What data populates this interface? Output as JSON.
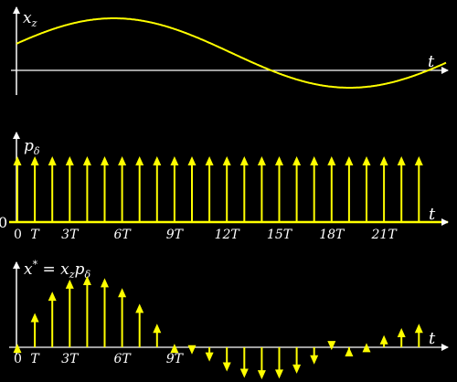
{
  "colors": {
    "background": "#000000",
    "axis": "#ffffff",
    "signal": "#ffff00"
  },
  "labels": {
    "top_y": "x",
    "top_y_sub": "z",
    "mid_y": "p",
    "mid_y_sub": "δ",
    "bot_y_a": "x",
    "bot_y_sup": "*",
    "bot_y_eq": " = ",
    "bot_y_b": "x",
    "bot_y_b_sub": "z",
    "bot_y_c": "p",
    "bot_y_c_sub": "δ",
    "t": "t",
    "zero": "0"
  },
  "mid_ticks": [
    "T",
    "3T",
    "6T",
    "9T",
    "12T",
    "15T",
    "18T",
    "21T"
  ],
  "bot_ticks": [
    "T",
    "3T",
    "6T",
    "9T"
  ],
  "chart_data": [
    {
      "type": "line",
      "title": "",
      "xlabel": "t",
      "ylabel": "x_z",
      "function": "continuous sinusoid, period ≈ 27T, phase such that x_z(0) ≈ 0.28·A, peak ≈ 4.5T, trough ≈ 18T",
      "samples_T_units": [
        0,
        2,
        4.5,
        8,
        11,
        14,
        18,
        22,
        26
      ],
      "samples_norm": [
        0.28,
        0.86,
        1.0,
        0.77,
        0.26,
        -0.28,
        -0.42,
        -0.18,
        0.3
      ]
    },
    {
      "type": "impulse",
      "title": "",
      "xlabel": "t",
      "ylabel": "p_δ",
      "impulse_positions_T": [
        0,
        1,
        2,
        3,
        4,
        5,
        6,
        7,
        8,
        9,
        10,
        11,
        12,
        13,
        14,
        15,
        16,
        17,
        18,
        19,
        20,
        21,
        22,
        23
      ],
      "impulse_height": 1
    },
    {
      "type": "impulse",
      "title": "",
      "xlabel": "t",
      "ylabel": "x* = x_z p_δ",
      "impulse_positions_T": [
        0,
        1,
        2,
        3,
        4,
        5,
        6,
        7,
        8,
        9,
        10,
        11,
        12,
        13,
        14,
        15,
        16,
        17,
        18,
        19,
        20,
        21,
        22,
        23
      ],
      "impulse_values_norm": [
        0.05,
        0.48,
        0.78,
        0.95,
        1.0,
        0.97,
        0.83,
        0.61,
        0.33,
        0.05,
        -0.1,
        -0.2,
        -0.34,
        -0.43,
        -0.45,
        -0.44,
        -0.37,
        -0.24,
        -0.04,
        0.0,
        0.06,
        0.17,
        0.27,
        0.33
      ]
    }
  ]
}
